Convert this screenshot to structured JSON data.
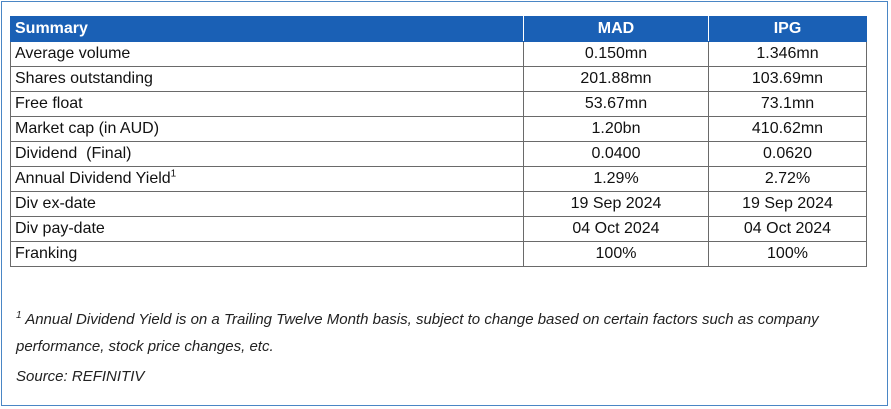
{
  "table": {
    "headers": [
      "Summary",
      "MAD",
      "IPG"
    ],
    "rows": [
      {
        "label": "Average volume",
        "sup": "",
        "mad": "0.150mn",
        "ipg": "1.346mn"
      },
      {
        "label": "Shares outstanding",
        "sup": "",
        "mad": "201.88mn",
        "ipg": "103.69mn"
      },
      {
        "label": "Free float",
        "sup": "",
        "mad": "53.67mn",
        "ipg": "73.1mn"
      },
      {
        "label": "Market cap (in AUD)",
        "sup": "",
        "mad": "1.20bn",
        "ipg": "410.62mn"
      },
      {
        "label": "Dividend  (Final)",
        "sup": "",
        "mad": "0.0400",
        "ipg": "0.0620"
      },
      {
        "label": "Annual Dividend Yield",
        "sup": "1",
        "mad": "1.29%",
        "ipg": "2.72%"
      },
      {
        "label": "Div ex-date",
        "sup": "",
        "mad": "19 Sep 2024",
        "ipg": "19 Sep 2024"
      },
      {
        "label": "Div pay-date",
        "sup": "",
        "mad": "04 Oct 2024",
        "ipg": "04 Oct 2024"
      },
      {
        "label": "Franking",
        "sup": "",
        "mad": "100%",
        "ipg": "100%"
      }
    ]
  },
  "footnote": {
    "marker": "1",
    "text": "Annual Dividend Yield is on a Trailing Twelve Month basis, subject to change based on certain factors such as company performance, stock price changes, etc."
  },
  "source": "Source: REFINITIV",
  "colors": {
    "header_bg": "#1a60b5",
    "frame_border": "#4a86c5"
  }
}
